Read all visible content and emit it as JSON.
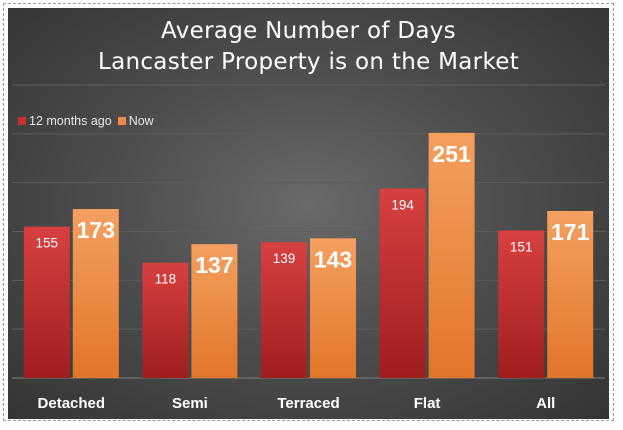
{
  "chart_data": {
    "type": "bar",
    "title": [
      "Average Number of Days",
      "Lancaster Property is on the Market"
    ],
    "categories": [
      "Detached",
      "Semi",
      "Terraced",
      "Flat",
      "All"
    ],
    "series": [
      {
        "name": "12 months ago",
        "values": [
          155,
          118,
          139,
          194,
          151
        ]
      },
      {
        "name": "Now",
        "values": [
          173,
          137,
          143,
          251,
          171
        ]
      }
    ],
    "ylim": [
      0,
      300
    ],
    "grid": true,
    "legend_position": "top-left"
  },
  "colors": {
    "series_1": "#c83030",
    "series_2": "#ee8a45"
  }
}
